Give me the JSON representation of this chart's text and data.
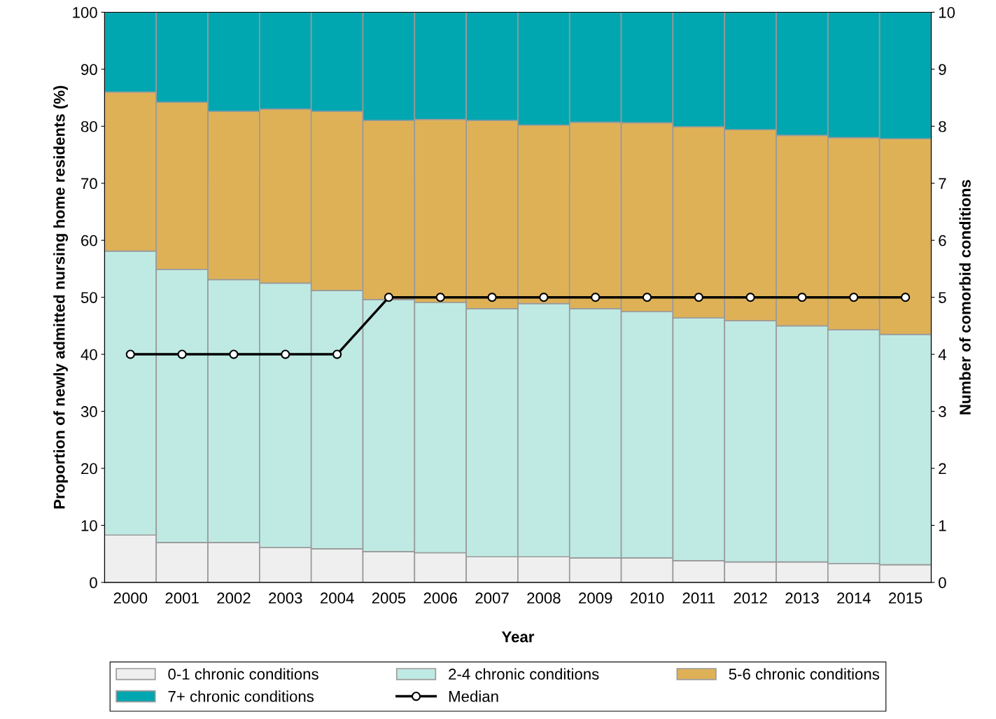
{
  "chart_data": {
    "type": "bar",
    "stacked": true,
    "xlabel": "Year",
    "ylabel": "Proportion of newly admitted nursing home residents (%)",
    "y2label": "Number of comorbid conditions",
    "categories": [
      "2000",
      "2001",
      "2002",
      "2003",
      "2004",
      "2005",
      "2006",
      "2007",
      "2008",
      "2009",
      "2010",
      "2011",
      "2012",
      "2013",
      "2014",
      "2015"
    ],
    "series": [
      {
        "name": "0-1 chronic conditions",
        "color": "#efefef",
        "values": [
          8.3,
          7.0,
          7.0,
          6.1,
          5.9,
          5.4,
          5.2,
          4.5,
          4.5,
          4.3,
          4.3,
          3.8,
          3.6,
          3.6,
          3.3,
          3.1
        ]
      },
      {
        "name": "2-4 chronic conditions",
        "color": "#bfeae3",
        "values": [
          49.8,
          47.9,
          46.1,
          46.4,
          45.3,
          44.2,
          43.9,
          43.5,
          44.4,
          43.7,
          43.2,
          42.6,
          42.3,
          41.4,
          41.0,
          40.4
        ]
      },
      {
        "name": "5-6 chronic conditions",
        "color": "#dfb157",
        "values": [
          27.9,
          29.3,
          29.5,
          30.5,
          31.4,
          31.4,
          32.1,
          33.0,
          31.3,
          32.7,
          33.1,
          33.5,
          33.5,
          33.4,
          33.7,
          34.3
        ]
      },
      {
        "name": "7+ chronic conditions",
        "color": "#00a6b0",
        "values": [
          14.0,
          15.8,
          17.4,
          17.0,
          17.4,
          19.0,
          18.8,
          19.0,
          19.8,
          19.3,
          19.4,
          20.1,
          20.6,
          21.6,
          22.0,
          22.2
        ]
      },
      {
        "name": "Median",
        "type": "line",
        "axis": "y2",
        "color": "#000000",
        "marker": "circle",
        "values": [
          4,
          4,
          4,
          4,
          4,
          5,
          5,
          5,
          5,
          5,
          5,
          5,
          5,
          5,
          5,
          5
        ]
      }
    ],
    "ylim": [
      0,
      100
    ],
    "yticks": [
      0,
      10,
      20,
      30,
      40,
      50,
      60,
      70,
      80,
      90,
      100
    ],
    "y2lim": [
      0,
      10
    ],
    "y2ticks": [
      0,
      1,
      2,
      3,
      4,
      5,
      6,
      7,
      8,
      9,
      10
    ],
    "legend": "bottom"
  }
}
